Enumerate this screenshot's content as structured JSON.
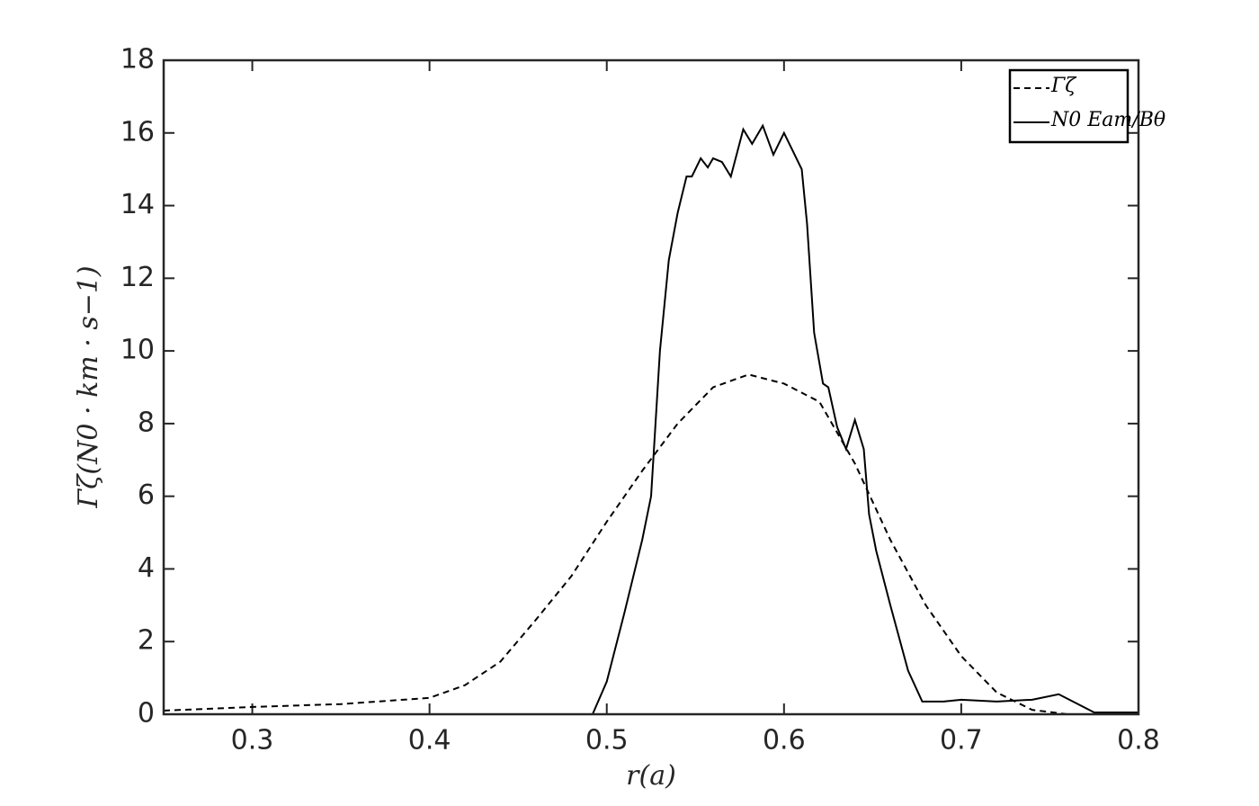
{
  "chart_data": {
    "type": "line",
    "xlabel": "r(a)",
    "ylabel": "Γζ(N0 · km · s−1)",
    "xlim": [
      0.25,
      0.8
    ],
    "xticks": [
      0.3,
      0.4,
      0.5,
      0.6,
      0.7,
      0.8
    ],
    "ylim": [
      0,
      18
    ],
    "yticks": [
      0,
      2,
      4,
      6,
      8,
      10,
      12,
      14,
      16,
      18
    ],
    "legend": "northeast",
    "grid": false,
    "series": [
      {
        "name": "Γζ",
        "color": "#000000",
        "line_style": "dashed",
        "x": [
          0.25,
          0.3,
          0.35,
          0.4,
          0.42,
          0.44,
          0.46,
          0.48,
          0.5,
          0.52,
          0.54,
          0.56,
          0.58,
          0.6,
          0.62,
          0.64,
          0.66,
          0.68,
          0.7,
          0.72,
          0.74,
          0.76,
          0.8
        ],
        "values": [
          0.1,
          0.2,
          0.28,
          0.45,
          0.8,
          1.45,
          2.6,
          3.8,
          5.3,
          6.7,
          8.0,
          9.0,
          9.35,
          9.1,
          8.6,
          6.9,
          4.8,
          3.0,
          1.6,
          0.6,
          0.12,
          0,
          0
        ]
      },
      {
        "name": "N0 Eam/Bθ",
        "color": "#000000",
        "line_style": "solid",
        "x": [
          0.492,
          0.5,
          0.51,
          0.52,
          0.525,
          0.53,
          0.535,
          0.54,
          0.545,
          0.548,
          0.553,
          0.557,
          0.56,
          0.565,
          0.57,
          0.577,
          0.582,
          0.588,
          0.594,
          0.6,
          0.605,
          0.61,
          0.613,
          0.617,
          0.622,
          0.625,
          0.63,
          0.635,
          0.64,
          0.645,
          0.648,
          0.652,
          0.66,
          0.67,
          0.678,
          0.69,
          0.7,
          0.72,
          0.74,
          0.755,
          0.765,
          0.775,
          0.8
        ],
        "values": [
          0,
          0.9,
          2.8,
          4.8,
          6.0,
          10.0,
          12.5,
          13.8,
          14.8,
          14.8,
          15.3,
          15.05,
          15.3,
          15.2,
          14.8,
          16.1,
          15.7,
          16.2,
          15.4,
          16.0,
          15.5,
          15.0,
          13.5,
          10.5,
          9.1,
          9.0,
          7.9,
          7.3,
          8.1,
          7.3,
          5.5,
          4.5,
          3.0,
          1.2,
          0.35,
          0.35,
          0.4,
          0.35,
          0.4,
          0.55,
          0.3,
          0.05,
          0.05
        ]
      }
    ]
  }
}
